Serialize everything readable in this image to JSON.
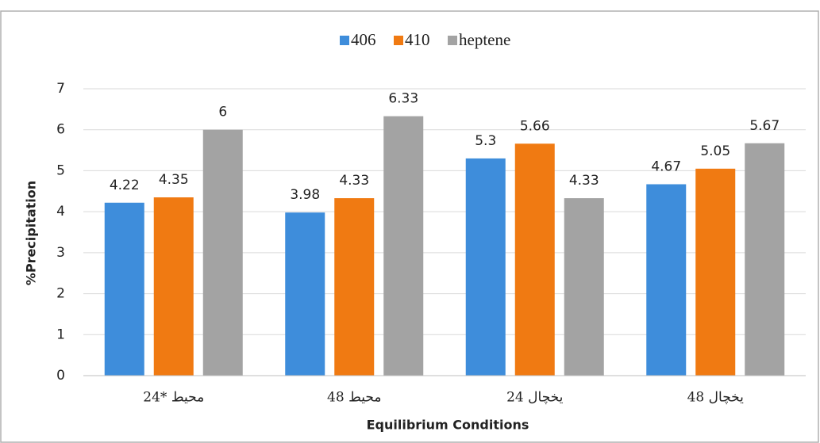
{
  "chart_data": {
    "type": "bar",
    "x_label": "Equilibrium Conditions",
    "y_label": "%Precipitation",
    "categories": [
      "24* محیط",
      "48 محیط",
      "24 یخچال",
      "48 یخچال"
    ],
    "series": [
      {
        "name": "406",
        "color": "#3e8ddb",
        "values": [
          4.22,
          3.98,
          5.3,
          4.67
        ]
      },
      {
        "name": "410",
        "color": "#f07a12",
        "values": [
          4.35,
          4.33,
          5.66,
          5.05
        ]
      },
      {
        "name": "heptene",
        "color": "#a3a3a3",
        "values": [
          6,
          6.33,
          4.33,
          5.67
        ]
      }
    ],
    "ylim": [
      0,
      7
    ],
    "yticks": [
      0,
      1,
      2,
      3,
      4,
      5,
      6,
      7
    ],
    "grid": true,
    "legend": "top"
  }
}
